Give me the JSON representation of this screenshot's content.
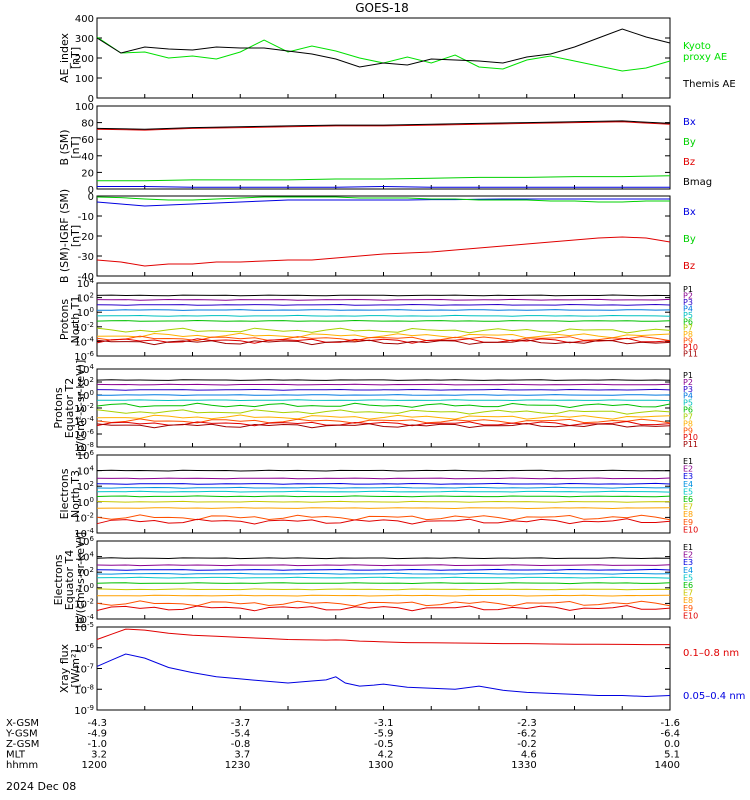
{
  "title": "GOES-18",
  "date": "2024 Dec 08",
  "colors": {
    "black": "#000000",
    "red": "#e00000",
    "green": "#00d000",
    "blue": "#0000e0",
    "ae_kyoto": "#00e000",
    "p_series": [
      "#000000",
      "#8a0090",
      "#2a00c8",
      "#0078e0",
      "#00c0c0",
      "#00c000",
      "#a8d000",
      "#ffb000",
      "#ff5000",
      "#e00000",
      "#a00000"
    ],
    "e_series": [
      "#000000",
      "#8a0090",
      "#0000e0",
      "#0090e0",
      "#00c8c8",
      "#00c000",
      "#c8c800",
      "#ffa000",
      "#ff5000",
      "#e00000"
    ]
  },
  "xaxis": {
    "time_ticks": [
      "1200",
      "1230",
      "1300",
      "1330",
      "1400"
    ],
    "rows": [
      {
        "label": "X-GSM",
        "values": [
          "-4.3",
          "-3.7",
          "-3.1",
          "-2.3",
          "-1.6"
        ]
      },
      {
        "label": "Y-GSM",
        "values": [
          "-4.9",
          "-5.4",
          "-5.9",
          "-6.2",
          "-6.4"
        ]
      },
      {
        "label": "Z-GSM",
        "values": [
          "-1.0",
          "-0.8",
          "-0.5",
          "-0.2",
          "0.0"
        ]
      },
      {
        "label": "MLT",
        "values": [
          "3.2",
          "3.7",
          "4.2",
          "4.6",
          "5.1"
        ]
      },
      {
        "label": "hhmm",
        "values": [
          "1200",
          "1230",
          "1300",
          "1330",
          "1400"
        ]
      }
    ]
  },
  "chart_data": [
    {
      "type": "line",
      "ylabel": [
        "AE_index",
        "[nT]"
      ],
      "ylim": [
        0,
        400
      ],
      "yticks": [
        "0",
        "100",
        "200",
        "300",
        "400"
      ],
      "x_minutes": [
        0,
        5,
        10,
        15,
        20,
        25,
        30,
        35,
        40,
        45,
        50,
        55,
        60,
        65,
        70,
        75,
        80,
        85,
        90,
        95,
        100,
        105,
        110,
        115,
        120
      ],
      "series": [
        {
          "name": "Kyoto proxy AE",
          "legend": [
            "Kyoto",
            "proxy AE"
          ],
          "color": "ae_kyoto",
          "values": [
            305,
            225,
            230,
            200,
            210,
            195,
            230,
            290,
            230,
            260,
            235,
            200,
            175,
            205,
            175,
            215,
            155,
            145,
            190,
            210,
            185,
            160,
            135,
            150,
            185
          ]
        },
        {
          "name": "Themis AE",
          "legend": [
            "Themis AE"
          ],
          "color": "black",
          "values": [
            300,
            225,
            255,
            245,
            240,
            255,
            250,
            250,
            235,
            220,
            195,
            155,
            175,
            165,
            195,
            190,
            185,
            175,
            205,
            220,
            255,
            300,
            345,
            305,
            275
          ]
        }
      ]
    },
    {
      "type": "line",
      "ylabel": [
        "B (SM)",
        "[nT]"
      ],
      "ylim": [
        0,
        100
      ],
      "yticks": [
        "0",
        "20",
        "40",
        "60",
        "80",
        "100"
      ],
      "x_minutes": [
        0,
        10,
        20,
        30,
        40,
        50,
        60,
        70,
        80,
        90,
        100,
        110,
        120
      ],
      "series": [
        {
          "name": "Bx",
          "legend": [
            "Bx"
          ],
          "color": "blue",
          "values": [
            3,
            3,
            2,
            2,
            2,
            2,
            3,
            2,
            2,
            2,
            2,
            2,
            2
          ]
        },
        {
          "name": "By",
          "legend": [
            "By"
          ],
          "color": "green",
          "values": [
            10,
            10,
            11,
            11,
            11,
            12,
            12,
            13,
            14,
            14,
            15,
            15,
            16
          ]
        },
        {
          "name": "Bz",
          "legend": [
            "Bz"
          ],
          "color": "red",
          "values": [
            72,
            71,
            73,
            74,
            75,
            76,
            76,
            77,
            78,
            79,
            80,
            81,
            78
          ]
        },
        {
          "name": "Bmag",
          "legend": [
            "Bmag"
          ],
          "color": "black",
          "values": [
            73,
            72,
            74,
            75,
            76,
            77,
            77,
            78,
            79,
            80,
            81,
            82,
            79
          ]
        }
      ]
    },
    {
      "type": "line",
      "ylabel": [
        "B (SM)-IGRF (SM)",
        "[nT]"
      ],
      "ylim": [
        -40,
        0
      ],
      "yticks": [
        "-40",
        "-30",
        "-20",
        "-10",
        "0"
      ],
      "x_minutes": [
        0,
        5,
        10,
        15,
        20,
        25,
        30,
        35,
        40,
        45,
        50,
        55,
        60,
        65,
        70,
        75,
        80,
        85,
        90,
        95,
        100,
        105,
        110,
        115,
        120
      ],
      "series": [
        {
          "name": "Bx",
          "legend": [
            "Bx"
          ],
          "color": "blue",
          "values": [
            -3,
            -4,
            -5,
            -4.5,
            -4,
            -3.5,
            -3,
            -2.5,
            -2,
            -2,
            -2,
            -2,
            -2,
            -2,
            -1.8,
            -1.8,
            -1.6,
            -1.5,
            -1.5,
            -1.5,
            -1.5,
            -1.5,
            -1.5,
            -1.5,
            -1.5
          ]
        },
        {
          "name": "By",
          "legend": [
            "By"
          ],
          "color": "green",
          "values": [
            -0.5,
            -0.8,
            -1.5,
            -2,
            -2,
            -1.5,
            -1,
            -0.5,
            -0.5,
            -0.5,
            -0.5,
            -1,
            -1,
            -1,
            -1.5,
            -1.5,
            -2,
            -2,
            -2,
            -2.5,
            -2.5,
            -3,
            -3,
            -2.5,
            -2.5
          ]
        },
        {
          "name": "Bz",
          "legend": [
            "Bz"
          ],
          "color": "red",
          "values": [
            -32,
            -33,
            -35,
            -34,
            -34,
            -33,
            -33,
            -32.5,
            -32,
            -32,
            -31,
            -30,
            -29,
            -28.5,
            -28,
            -27,
            -26,
            -25,
            -24,
            -23,
            -22,
            -21,
            -20.5,
            -21,
            -23
          ]
        }
      ]
    },
    {
      "type": "line",
      "scale": "log",
      "ylabel": [
        "Protons",
        "North T1"
      ],
      "ylim": [
        -6,
        4
      ],
      "yticks": [
        "10^4",
        "10^2",
        "10^0",
        "10^-2",
        "10^-4",
        "10^-6"
      ],
      "series": [
        {
          "name": "P1",
          "legend": [
            "P1"
          ],
          "log10": 2.3
        },
        {
          "name": "P2",
          "legend": [
            "P2"
          ],
          "log10": 1.7
        },
        {
          "name": "P3",
          "legend": [
            "P3"
          ],
          "log10": 1.0
        },
        {
          "name": "P4",
          "legend": [
            "P4"
          ],
          "log10": 0.3
        },
        {
          "name": "P5",
          "legend": [
            "P5"
          ],
          "log10": -0.5
        },
        {
          "name": "P6",
          "legend": [
            "P6"
          ],
          "log10": -1.2
        },
        {
          "name": "P7",
          "legend": [
            "P7"
          ],
          "log10": -2.5
        },
        {
          "name": "P8",
          "legend": [
            "P8"
          ],
          "log10": -3.2
        },
        {
          "name": "P9",
          "legend": [
            "P9"
          ],
          "log10": -3.6
        },
        {
          "name": "P10",
          "legend": [
            "P10"
          ],
          "log10": -3.9
        },
        {
          "name": "P11",
          "legend": [
            "P11"
          ],
          "log10": -4.1
        }
      ]
    },
    {
      "type": "line",
      "scale": "log",
      "ylabel": [
        "Protons",
        "Equator T2",
        "[p/(cm²-s-sr-keV)]"
      ],
      "ylim": [
        -8,
        4
      ],
      "yticks": [
        "10^4",
        "10^2",
        "10^0",
        "10^-2",
        "10^-4",
        "10^-6",
        "10^-8"
      ],
      "series": [
        {
          "name": "P1",
          "legend": [
            "P1"
          ],
          "log10": 2.3
        },
        {
          "name": "P2",
          "legend": [
            "P2"
          ],
          "log10": 1.6
        },
        {
          "name": "P3",
          "legend": [
            "P3"
          ],
          "log10": 0.8
        },
        {
          "name": "P4",
          "legend": [
            "P4"
          ],
          "log10": 0.0
        },
        {
          "name": "P5",
          "legend": [
            "P5"
          ],
          "log10": -0.8
        },
        {
          "name": "P6",
          "legend": [
            "P6"
          ],
          "log10": -1.6
        },
        {
          "name": "P7",
          "legend": [
            "P7"
          ],
          "log10": -2.6
        },
        {
          "name": "P8",
          "legend": [
            "P8"
          ],
          "log10": -3.4
        },
        {
          "name": "P9",
          "legend": [
            "P9"
          ],
          "log10": -4.0
        },
        {
          "name": "P10",
          "legend": [
            "P10"
          ],
          "log10": -4.4
        },
        {
          "name": "P11",
          "legend": [
            "P11"
          ],
          "log10": -4.7
        }
      ]
    },
    {
      "type": "line",
      "scale": "log",
      "ylabel": [
        "Electrons",
        "North T3"
      ],
      "ylim": [
        -4,
        6
      ],
      "yticks": [
        "10^6",
        "10^4",
        "10^2",
        "10^0",
        "10^-2",
        "10^-4"
      ],
      "series": [
        {
          "name": "E1",
          "legend": [
            "E1"
          ],
          "log10": 4.0
        },
        {
          "name": "E2",
          "legend": [
            "E2"
          ],
          "log10": 3.0
        },
        {
          "name": "E3",
          "legend": [
            "E3"
          ],
          "log10": 2.3
        },
        {
          "name": "E4",
          "legend": [
            "E4"
          ],
          "log10": 1.8
        },
        {
          "name": "E5",
          "legend": [
            "E5"
          ],
          "log10": 1.3
        },
        {
          "name": "E6",
          "legend": [
            "E6"
          ],
          "log10": 0.7
        },
        {
          "name": "E7",
          "legend": [
            "E7"
          ],
          "log10": 0.0
        },
        {
          "name": "E8",
          "legend": [
            "E8"
          ],
          "log10": -0.8
        },
        {
          "name": "E9",
          "legend": [
            "E9"
          ],
          "log10": -2.0
        },
        {
          "name": "E10",
          "legend": [
            "E10"
          ],
          "log10": -2.5
        }
      ]
    },
    {
      "type": "line",
      "scale": "log",
      "ylabel": [
        "Electrons",
        "Equator T4",
        "[e/(cm²-s-sr-keV)]"
      ],
      "ylim": [
        -4,
        6
      ],
      "yticks": [
        "10^6",
        "10^4",
        "10^2",
        "10^0",
        "10^-2",
        "10^-4"
      ],
      "series": [
        {
          "name": "E1",
          "legend": [
            "E1"
          ],
          "log10": 3.8
        },
        {
          "name": "E2",
          "legend": [
            "E2"
          ],
          "log10": 2.9
        },
        {
          "name": "E3",
          "legend": [
            "E3"
          ],
          "log10": 2.3
        },
        {
          "name": "E4",
          "legend": [
            "E4"
          ],
          "log10": 1.8
        },
        {
          "name": "E5",
          "legend": [
            "E5"
          ],
          "log10": 1.3
        },
        {
          "name": "E6",
          "legend": [
            "E6"
          ],
          "log10": 0.6
        },
        {
          "name": "E7",
          "legend": [
            "E7"
          ],
          "log10": -0.2
        },
        {
          "name": "E8",
          "legend": [
            "E8"
          ],
          "log10": -1.0
        },
        {
          "name": "E9",
          "legend": [
            "E9"
          ],
          "log10": -2.0
        },
        {
          "name": "E10",
          "legend": [
            "E10"
          ],
          "log10": -2.6
        }
      ]
    },
    {
      "type": "line",
      "scale": "log",
      "ylabel": [
        "Xray flux",
        "[W/m²]"
      ],
      "ylim": [
        -9,
        -5
      ],
      "yticks": [
        "10^-5",
        "10^-6",
        "10^-7",
        "10^-8",
        "10^-9"
      ],
      "x_minutes": [
        0,
        3,
        6,
        10,
        15,
        20,
        25,
        30,
        35,
        40,
        45,
        48,
        50,
        52,
        55,
        58,
        60,
        65,
        70,
        75,
        80,
        85,
        90,
        95,
        100,
        105,
        110,
        115,
        120
      ],
      "series": [
        {
          "name": "0.1-0.8 nm",
          "legend": [
            "0.1–0.8 nm"
          ],
          "color": "red",
          "values": [
            -5.6,
            -5.35,
            -5.1,
            -5.15,
            -5.3,
            -5.4,
            -5.45,
            -5.5,
            -5.55,
            -5.6,
            -5.62,
            -5.63,
            -5.62,
            -5.63,
            -5.68,
            -5.7,
            -5.72,
            -5.75,
            -5.76,
            -5.77,
            -5.78,
            -5.8,
            -5.8,
            -5.82,
            -5.83,
            -5.83,
            -5.84,
            -5.85,
            -5.85
          ]
        },
        {
          "name": "0.05-0.4 nm",
          "legend": [
            "0.05–0.4 nm"
          ],
          "color": "blue",
          "values": [
            -6.9,
            -6.6,
            -6.3,
            -6.5,
            -6.95,
            -7.2,
            -7.4,
            -7.5,
            -7.6,
            -7.7,
            -7.6,
            -7.55,
            -7.4,
            -7.7,
            -7.85,
            -7.8,
            -7.75,
            -7.9,
            -7.95,
            -8.0,
            -7.85,
            -8.05,
            -8.15,
            -8.2,
            -8.25,
            -8.3,
            -8.3,
            -8.35,
            -8.3
          ]
        }
      ]
    }
  ]
}
